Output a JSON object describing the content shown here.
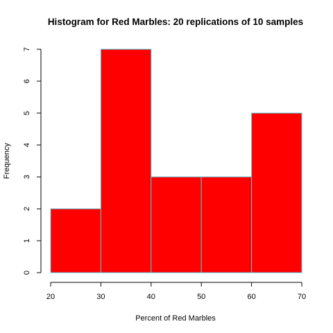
{
  "chart_data": {
    "type": "bar",
    "subtype": "histogram",
    "title": "Histogram for Red Marbles: 20 replications of 10 samples",
    "xlabel": "Percent of Red Marbles",
    "ylabel": "Frequency",
    "bins": [
      {
        "start": 20,
        "end": 30,
        "value": 2
      },
      {
        "start": 30,
        "end": 40,
        "value": 7
      },
      {
        "start": 40,
        "end": 50,
        "value": 3
      },
      {
        "start": 50,
        "end": 60,
        "value": 3
      },
      {
        "start": 60,
        "end": 70,
        "value": 5
      }
    ],
    "xlim": [
      20,
      70
    ],
    "ylim": [
      0,
      7
    ],
    "x_ticks": [
      "20",
      "30",
      "40",
      "50",
      "60",
      "70"
    ],
    "y_ticks": [
      "0",
      "1",
      "2",
      "3",
      "4",
      "5",
      "6",
      "7"
    ],
    "grid": false,
    "legend": "none",
    "colors": {
      "bar_fill": "#ff0000",
      "bar_border": "#4fc8d8"
    }
  }
}
